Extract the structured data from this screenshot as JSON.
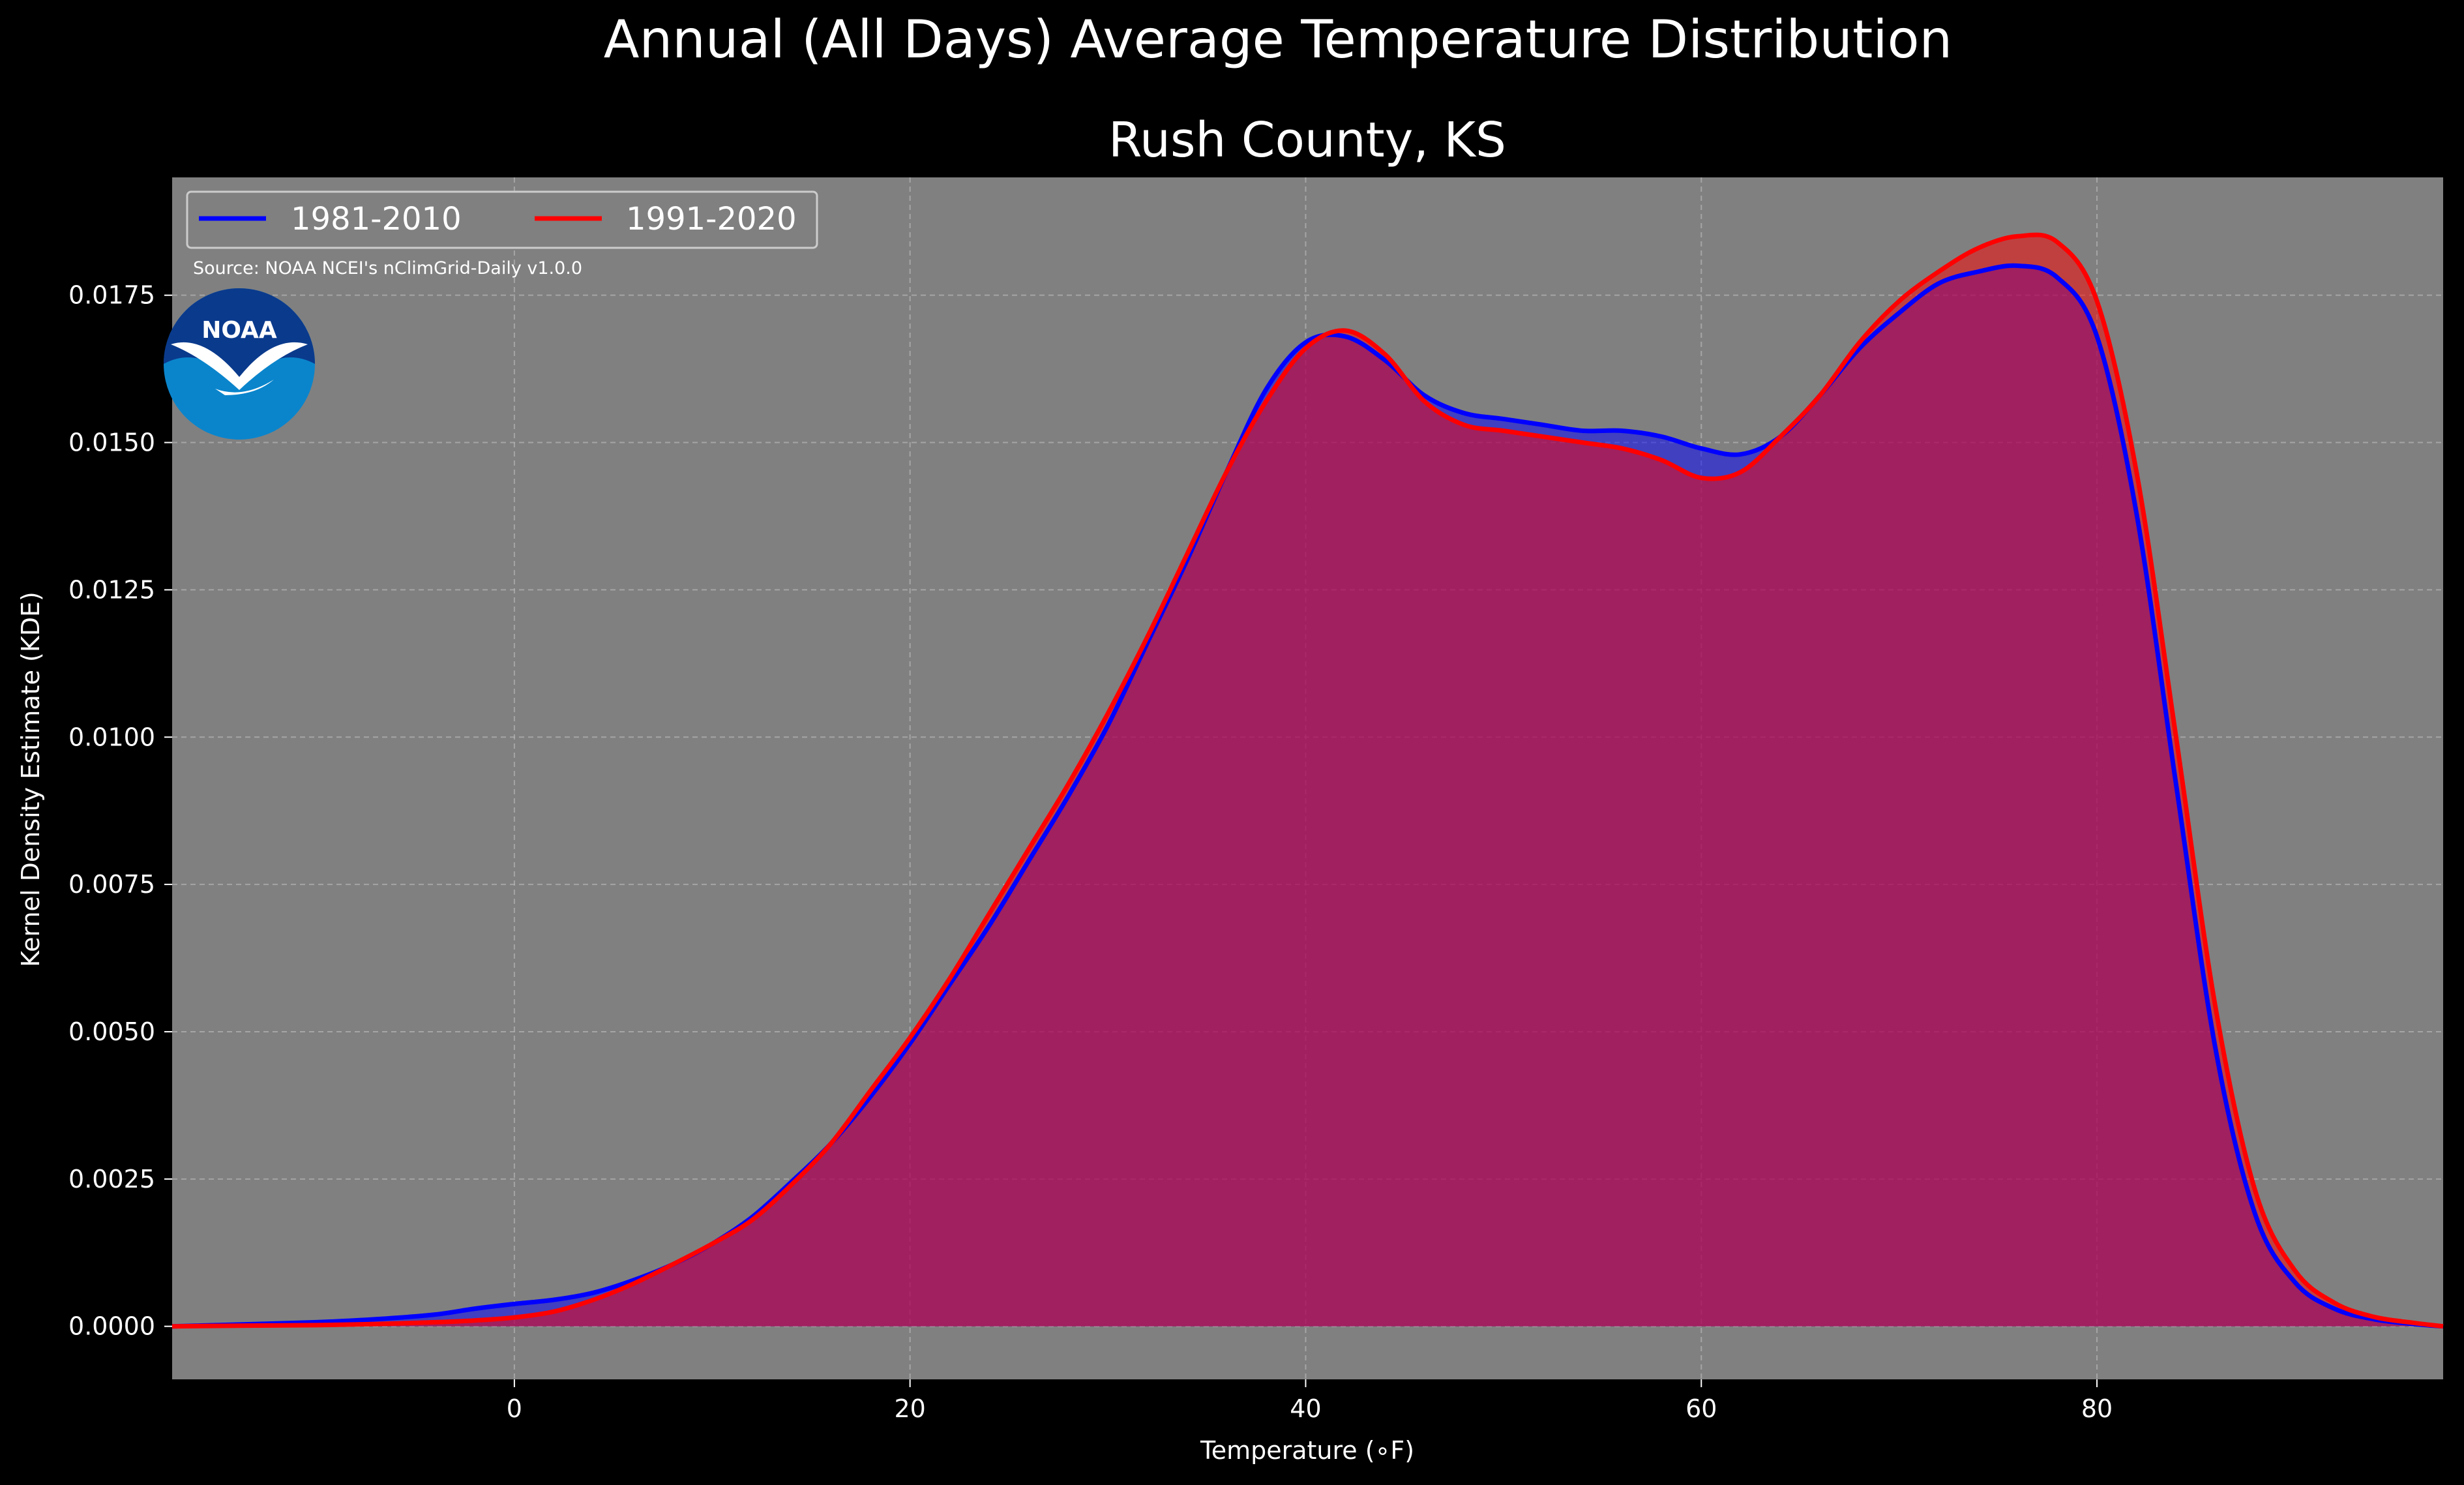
{
  "figure": {
    "suptitle": "Annual (All Days) Average Temperature Distribution",
    "source": "Source: NOAA NCEI's nClimGrid-Daily v1.0.0",
    "logo_text": "NOAA"
  },
  "colors": {
    "figure_bg": "#000000",
    "axes_bg": "#808080",
    "grid": "#b5b5b5",
    "text": "#ffffff",
    "series_1981": "#0000ff",
    "series_1991": "#ff0000",
    "fill_overlap": "#9e1f5e",
    "logo_dark": "#0a3a8c",
    "logo_light": "#0a85cc"
  },
  "chart_data": {
    "type": "area",
    "title": "Rush County, KS",
    "xlabel": "Temperature (∘F)",
    "ylabel": "Kernel Density Estimate (KDE)",
    "xlim": [
      -17.3,
      97.5
    ],
    "ylim": [
      -0.0009,
      0.0195
    ],
    "xticks": [
      0,
      20,
      40,
      60,
      80
    ],
    "yticks": [
      "0.0000",
      "0.0025",
      "0.0050",
      "0.0075",
      "0.0100",
      "0.0125",
      "0.0150",
      "0.0175"
    ],
    "grid": true,
    "legend_placement": "top-left",
    "x": [
      -17.3,
      -14,
      -10,
      -7,
      -4,
      -2,
      0,
      2,
      4,
      6,
      8,
      10,
      12,
      14,
      16,
      18,
      20,
      22,
      24,
      26,
      28,
      30,
      32,
      34,
      36,
      38,
      40,
      42,
      44,
      46,
      48,
      50,
      52,
      54,
      56,
      58,
      60,
      62,
      64,
      66,
      68,
      70,
      72,
      74,
      76,
      78,
      80,
      82,
      84,
      86,
      88,
      90,
      92,
      94,
      96,
      97.5
    ],
    "series": [
      {
        "name": "1981-2010",
        "values": [
          0.0,
          3e-05,
          7e-05,
          0.00012,
          0.0002,
          0.0003,
          0.00038,
          0.00045,
          0.00057,
          0.00078,
          0.00105,
          0.0014,
          0.00185,
          0.00245,
          0.0031,
          0.0039,
          0.0048,
          0.0058,
          0.0068,
          0.0079,
          0.009,
          0.0102,
          0.0116,
          0.013,
          0.0145,
          0.0159,
          0.0167,
          0.0168,
          0.0164,
          0.0158,
          0.0155,
          0.0154,
          0.0153,
          0.0152,
          0.0152,
          0.0151,
          0.0149,
          0.0148,
          0.0151,
          0.0158,
          0.0166,
          0.0172,
          0.0177,
          0.0179,
          0.018,
          0.0178,
          0.0168,
          0.0138,
          0.0092,
          0.0047,
          0.0019,
          0.00075,
          0.0003,
          0.00012,
          4e-05,
          0.0
        ]
      },
      {
        "name": "1991-2020",
        "values": [
          0.0,
          1e-05,
          2e-05,
          4e-05,
          7e-05,
          0.0001,
          0.00015,
          0.00025,
          0.00045,
          0.00072,
          0.00105,
          0.0014,
          0.0018,
          0.0024,
          0.0031,
          0.004,
          0.0049,
          0.0059,
          0.007,
          0.0081,
          0.0092,
          0.0104,
          0.0117,
          0.0131,
          0.0145,
          0.0157,
          0.0166,
          0.0169,
          0.0165,
          0.0157,
          0.0153,
          0.0152,
          0.0151,
          0.015,
          0.0149,
          0.0147,
          0.0144,
          0.0145,
          0.0151,
          0.0158,
          0.0167,
          0.0174,
          0.0179,
          0.0183,
          0.0185,
          0.0184,
          0.0174,
          0.0145,
          0.01,
          0.0054,
          0.0023,
          0.00095,
          0.0004,
          0.00016,
          6e-05,
          0.0
        ]
      }
    ]
  }
}
